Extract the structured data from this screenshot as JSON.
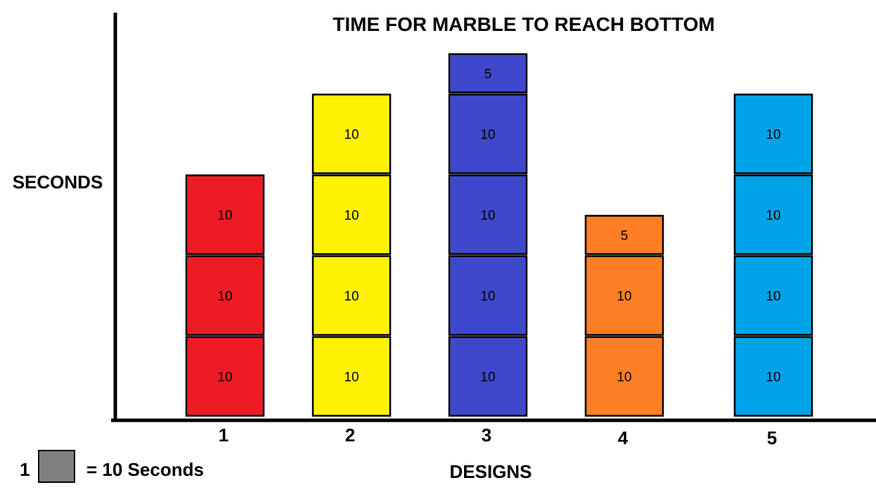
{
  "chart_data": {
    "type": "bar",
    "title": "TIME FOR MARBLE TO REACH BOTTOM",
    "xlabel": "DESIGNS",
    "ylabel": "SECONDS",
    "categories": [
      "1",
      "2",
      "3",
      "4",
      "5"
    ],
    "values": [
      30,
      40,
      45,
      25,
      40
    ],
    "segments": [
      [
        10,
        10,
        10
      ],
      [
        10,
        10,
        10,
        10
      ],
      [
        10,
        10,
        10,
        10,
        5
      ],
      [
        10,
        10,
        5
      ],
      [
        10,
        10,
        10,
        10
      ]
    ],
    "colors": [
      "#ed1c24",
      "#fff200",
      "#3f48cc",
      "#ff7f27",
      "#00a2e8"
    ],
    "unit_value": 10,
    "grid": false,
    "legend": {
      "count": "1",
      "text": "= 10 Seconds",
      "color": "#7f7f7f",
      "placement": "bottom-left"
    }
  }
}
